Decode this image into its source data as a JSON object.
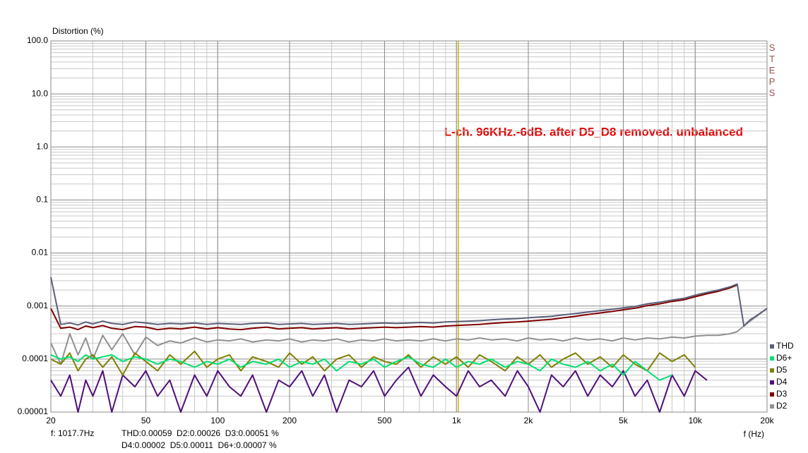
{
  "chart_data": {
    "type": "line",
    "y_label": "Distortion (%)",
    "x_label": "f (Hz)",
    "annotation": "L-ch. 96KHz.-6dB. after D5_D8 removed. unbalanced",
    "side_label": "STEPS",
    "x_log": true,
    "y_log": true,
    "grid": true,
    "minor_grid": true,
    "legend": "lower right",
    "xlim": [
      20,
      20000
    ],
    "ylim": [
      1e-05,
      100
    ],
    "xticks": [
      20,
      50,
      100,
      200,
      500,
      {
        "value": 1000,
        "label": "1k"
      },
      {
        "value": 2000,
        "label": "2k"
      },
      {
        "value": 5000,
        "label": "5k"
      },
      {
        "value": 10000,
        "label": "10k"
      },
      {
        "value": 20000,
        "label": "20k"
      }
    ],
    "yticks": [
      {
        "value": 100,
        "label": "100.0"
      },
      {
        "value": 10,
        "label": "10.0"
      },
      {
        "value": 1,
        "label": "1.0"
      },
      0.1,
      0.01,
      0.001,
      0.0001,
      1e-05
    ],
    "cursor": {
      "value": 1017.7,
      "label": "f: 1017.7Hz",
      "color": "#c8b400"
    },
    "readout": [
      "THD:0.00059  D2:0.00026  D3:0.00051 %",
      "D4:0.00002  D5:0.00011  D6+:0.00007 %"
    ],
    "x": [
      20,
      22,
      24,
      26,
      28,
      30,
      33,
      36,
      40,
      45,
      50,
      56,
      63,
      70,
      80,
      90,
      100,
      112,
      125,
      140,
      160,
      180,
      200,
      225,
      250,
      280,
      315,
      355,
      400,
      450,
      500,
      560,
      630,
      710,
      800,
      900,
      1000,
      1120,
      1250,
      1400,
      1600,
      1800,
      2000,
      2240,
      2500,
      2800,
      3150,
      3550,
      4000,
      4500,
      5000,
      5600,
      6300,
      7100,
      8000,
      9000,
      10000,
      11200,
      12500,
      14000,
      15000,
      16000,
      17000,
      18000,
      20000
    ],
    "series": [
      {
        "name": "THD",
        "color": "#5a6078",
        "values": [
          0.0035,
          0.00045,
          0.00048,
          0.00044,
          0.0005,
          0.00046,
          0.00052,
          0.00047,
          0.00045,
          0.0005,
          0.00048,
          0.00045,
          0.00047,
          0.00046,
          0.00048,
          0.00045,
          0.00047,
          0.00046,
          0.00045,
          0.00047,
          0.00048,
          0.00045,
          0.00046,
          0.00047,
          0.00045,
          0.00046,
          0.00047,
          0.00045,
          0.00046,
          0.00047,
          0.00048,
          0.00047,
          0.00048,
          0.00049,
          0.00048,
          0.0005,
          0.00051,
          0.00052,
          0.00053,
          0.00055,
          0.00057,
          0.00058,
          0.0006,
          0.00062,
          0.00064,
          0.00068,
          0.00072,
          0.00077,
          0.00082,
          0.00087,
          0.00092,
          0.00098,
          0.0011,
          0.00118,
          0.0013,
          0.0014,
          0.0016,
          0.0018,
          0.002,
          0.0023,
          0.0026,
          0.00042,
          0.00055,
          0.00065,
          0.0009
        ]
      },
      {
        "name": "D6+",
        "color": "#00e070",
        "values": [
          0.00012,
          0.0001,
          0.00011,
          9e-05,
          0.00012,
          0.0001,
          0.00011,
          0.00012,
          9e-05,
          0.00011,
          0.0001,
          8e-05,
          0.0001,
          9e-05,
          7e-05,
          9e-05,
          8e-05,
          0.0001,
          7e-05,
          9e-05,
          8e-05,
          0.0001,
          7e-05,
          9e-05,
          8e-05,
          0.0001,
          6e-05,
          9e-05,
          8e-05,
          0.0001,
          7e-05,
          9e-05,
          0.00011,
          8e-05,
          7e-05,
          0.0001,
          7e-05,
          9e-05,
          8e-05,
          0.0001,
          7e-05,
          9e-05,
          8e-05,
          6e-05,
          0.0001,
          8e-05,
          7e-05,
          9e-05,
          6e-05,
          8e-05,
          5e-05,
          9e-05,
          6e-05,
          4e-05,
          5e-05,
          null,
          null,
          null,
          null,
          null,
          null,
          null,
          null,
          null,
          null
        ]
      },
      {
        "name": "D5",
        "color": "#808000",
        "values": [
          0.0001,
          8e-05,
          0.00013,
          6e-05,
          0.0001,
          0.00012,
          7e-05,
          0.00011,
          5e-05,
          0.00013,
          9e-05,
          6e-05,
          0.00012,
          8e-05,
          0.00014,
          7e-05,
          0.0001,
          0.00012,
          6e-05,
          0.00011,
          9e-05,
          7e-05,
          0.00013,
          8e-05,
          0.00011,
          6e-05,
          0.0001,
          0.00012,
          7e-05,
          0.00011,
          9e-05,
          8e-05,
          0.00012,
          7e-05,
          0.00011,
          8e-05,
          0.00011,
          7e-05,
          0.00012,
          9e-05,
          6e-05,
          0.00011,
          8e-05,
          0.00012,
          7e-05,
          0.0001,
          0.00013,
          8e-05,
          0.00011,
          7e-05,
          0.00012,
          8e-05,
          6e-05,
          0.00013,
          9e-05,
          0.00012,
          7e-05,
          null,
          null,
          null,
          null,
          null,
          null,
          null,
          null
        ]
      },
      {
        "name": "D4",
        "color": "#50107a",
        "values": [
          4e-05,
          2e-05,
          5e-05,
          1e-05,
          4e-05,
          2e-05,
          6e-05,
          1e-05,
          5e-05,
          3e-05,
          6e-05,
          2e-05,
          4e-05,
          1e-05,
          5e-05,
          2e-05,
          6e-05,
          3e-05,
          2e-05,
          5e-05,
          1e-05,
          4e-05,
          3e-05,
          6e-05,
          2e-05,
          5e-05,
          1e-05,
          4e-05,
          3e-05,
          6e-05,
          2e-05,
          4e-05,
          7e-05,
          2e-05,
          5e-05,
          3e-05,
          2e-05,
          6e-05,
          3e-05,
          4e-05,
          2e-05,
          6e-05,
          3e-05,
          1e-05,
          5e-05,
          3e-05,
          6e-05,
          2e-05,
          5e-05,
          3e-05,
          6e-05,
          2e-05,
          4e-05,
          1e-05,
          5e-05,
          2e-05,
          6e-05,
          4e-05,
          null,
          null,
          null,
          null,
          null,
          null,
          null
        ]
      },
      {
        "name": "D3",
        "color": "#800000",
        "values": [
          0.0009,
          0.00038,
          0.0004,
          0.00036,
          0.00042,
          0.00039,
          0.00043,
          0.00038,
          0.00036,
          0.00041,
          0.0004,
          0.00036,
          0.00038,
          0.00037,
          0.0004,
          0.00037,
          0.00039,
          0.00037,
          0.00036,
          0.00038,
          0.0004,
          0.00037,
          0.00038,
          0.00039,
          0.00037,
          0.00038,
          0.00039,
          0.00037,
          0.00038,
          0.00039,
          0.0004,
          0.00039,
          0.0004,
          0.00041,
          0.0004,
          0.00042,
          0.00043,
          0.00044,
          0.00045,
          0.00047,
          0.00049,
          0.0005,
          0.00052,
          0.00054,
          0.00056,
          0.0006,
          0.00064,
          0.00069,
          0.00074,
          0.00079,
          0.00085,
          0.00091,
          0.00102,
          0.0011,
          0.00122,
          0.00132,
          0.0015,
          0.0017,
          0.0019,
          0.0022,
          0.0025,
          null,
          null,
          null,
          null
        ]
      },
      {
        "name": "D2",
        "color": "#909090",
        "values": [
          0.0002,
          8e-05,
          0.0003,
          0.00012,
          0.00025,
          0.0001,
          0.00028,
          0.00015,
          0.0003,
          0.00012,
          0.00026,
          0.00018,
          0.00022,
          0.0002,
          0.00025,
          0.00021,
          0.00023,
          0.00022,
          0.00024,
          0.00021,
          0.00023,
          0.00022,
          0.00024,
          0.00021,
          0.00023,
          0.00022,
          0.00024,
          0.00021,
          0.00023,
          0.00022,
          0.00024,
          0.00022,
          0.00023,
          0.00022,
          0.00024,
          0.00022,
          0.00024,
          0.00023,
          0.00025,
          0.00023,
          0.00024,
          0.00022,
          0.00025,
          0.00023,
          0.00024,
          0.00022,
          0.00025,
          0.00023,
          0.00024,
          0.00022,
          0.00025,
          0.00023,
          0.00025,
          0.00024,
          0.00026,
          0.00025,
          0.00027,
          0.00028,
          0.00028,
          0.0003,
          0.00033,
          0.00042,
          0.00052,
          0.00063,
          0.0009
        ]
      }
    ]
  }
}
